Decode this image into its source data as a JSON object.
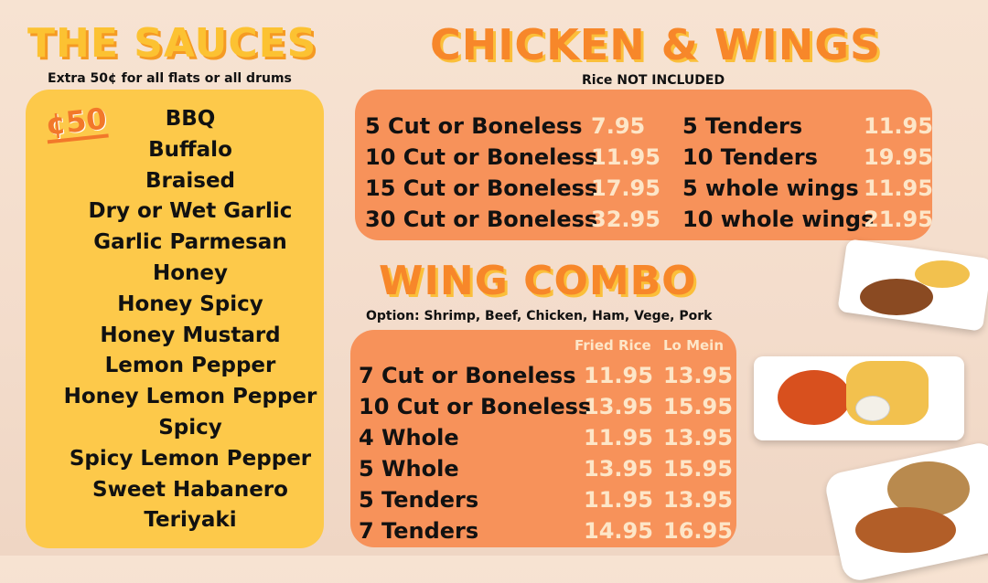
{
  "sauces": {
    "title": "THE SAUCES",
    "subtitle": "Extra 50¢ for all flats or all drums",
    "badge": "¢50",
    "items": [
      "BBQ",
      "Buffalo",
      "Braised",
      "Dry or Wet Garlic",
      "Garlic Parmesan",
      "Honey",
      "Honey Spicy",
      "Honey Mustard",
      "Lemon Pepper",
      "Honey Lemon Pepper",
      "Spicy",
      "Spicy Lemon Pepper",
      "Sweet Habanero",
      "Teriyaki"
    ]
  },
  "chicken": {
    "title": "CHICKEN & WINGS",
    "subtitle": "Rice NOT INCLUDED",
    "left": [
      {
        "name": "5 Cut or Boneless",
        "price": "7.95"
      },
      {
        "name": "10 Cut or Boneless",
        "price": "11.95"
      },
      {
        "name": "15 Cut or Boneless",
        "price": "17.95"
      },
      {
        "name": "30 Cut or Boneless",
        "price": "32.95"
      }
    ],
    "right": [
      {
        "name": "5 Tenders",
        "price": "11.95"
      },
      {
        "name": "10 Tenders",
        "price": "19.95"
      },
      {
        "name": "5 whole wings",
        "price": "11.95"
      },
      {
        "name": "10 whole wings",
        "price": "21.95"
      }
    ]
  },
  "combo": {
    "title": "WING COMBO",
    "subtitle": "Option: Shrimp, Beef, Chicken, Ham, Vege, Pork",
    "columns": [
      "Fried Rice",
      "Lo Mein"
    ],
    "rows": [
      {
        "name": "7 Cut or Boneless",
        "fried_rice": "11.95",
        "lo_mein": "13.95"
      },
      {
        "name": "10 Cut or Boneless",
        "fried_rice": "13.95",
        "lo_mein": "15.95"
      },
      {
        "name": "4 Whole",
        "fried_rice": "11.95",
        "lo_mein": "13.95"
      },
      {
        "name": "5 Whole",
        "fried_rice": "13.95",
        "lo_mein": "15.95"
      },
      {
        "name": "5 Tenders",
        "fried_rice": "11.95",
        "lo_mein": "13.95"
      },
      {
        "name": "7 Tenders",
        "fried_rice": "14.95",
        "lo_mein": "16.95"
      }
    ]
  },
  "colors": {
    "sauce_panel": "#fdc94a",
    "orange_panel": "#f7925a",
    "price_text": "#fde6c8",
    "title_orange": "#f7872a",
    "title_yellow": "#fcc232"
  }
}
